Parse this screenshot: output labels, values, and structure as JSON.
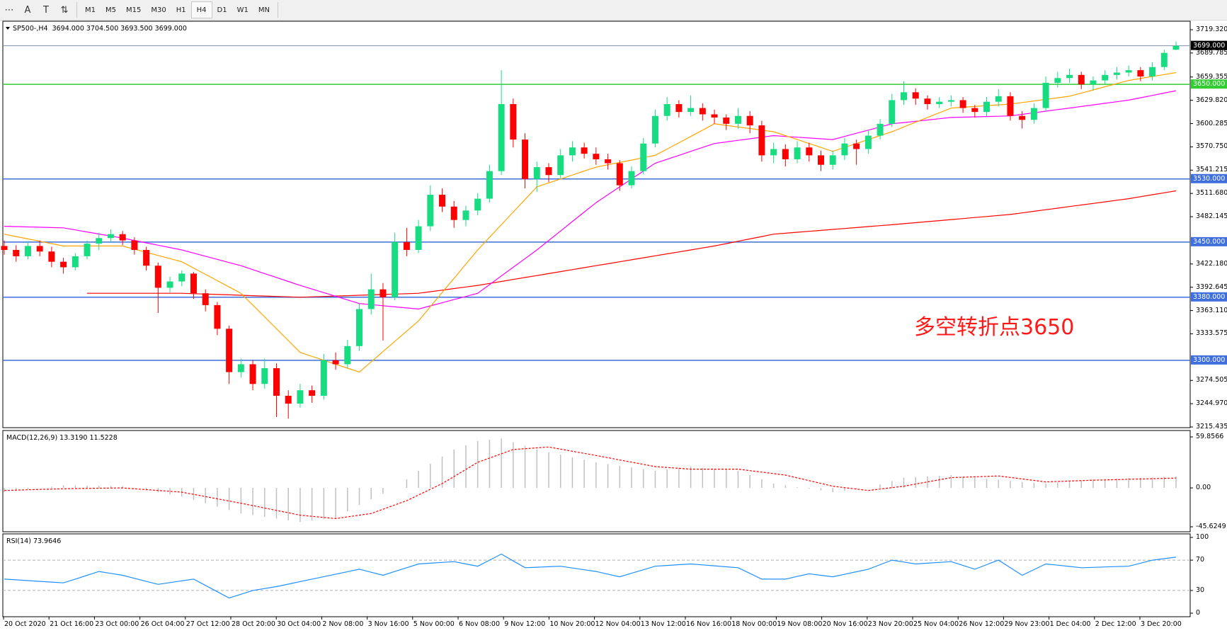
{
  "toolbar": {
    "tools": [
      {
        "name": "period-separators",
        "glyph": "⋯"
      },
      {
        "name": "text",
        "glyph": "A"
      },
      {
        "name": "text-label",
        "glyph": "T"
      },
      {
        "name": "arrows",
        "glyph": "⇅"
      }
    ],
    "timeframes": [
      "M1",
      "M5",
      "M15",
      "M30",
      "H1",
      "H4",
      "D1",
      "W1",
      "MN"
    ],
    "active_timeframe": "H4"
  },
  "chart": {
    "header": "SP500-,H4  3694.000 3704.500 3693.500 3699.000",
    "annotation": "多空转折点3650",
    "colors": {
      "bull": "#18dc82",
      "bear": "#ff0000",
      "ma_fast": "#ffa500",
      "ma_mid": "#ff00ff",
      "ma_slow": "#ff0000",
      "level": "#3f6fdc",
      "pivot": "#33cc33",
      "current": "#7f8fa8"
    },
    "price_ticks": [
      "3719.320",
      "3689.785",
      "3659.355",
      "3629.820",
      "3600.285",
      "3570.750",
      "3541.215",
      "3511.680",
      "3482.145",
      "3422.180",
      "3392.645",
      "3363.110",
      "3333.575",
      "3274.505",
      "3244.970",
      "3215.435"
    ],
    "price_range": [
      3215.435,
      3719.32
    ],
    "current_price": {
      "value": 3699.0,
      "label": "3699.000"
    },
    "levels": [
      {
        "value": 3650,
        "label": "3650.000",
        "kind": "pivot"
      },
      {
        "value": 3530,
        "label": "3530.000",
        "kind": "level"
      },
      {
        "value": 3450,
        "label": "3450.000",
        "kind": "level"
      },
      {
        "value": 3380,
        "label": "3380.000",
        "kind": "level"
      },
      {
        "value": 3300,
        "label": "3300.000",
        "kind": "level"
      }
    ],
    "time_labels": [
      "20 Oct 2020",
      "21 Oct 16:00",
      "23 Oct 00:00",
      "26 Oct 04:00",
      "27 Oct 12:00",
      "28 Oct 20:00",
      "30 Oct 04:00",
      "2 Nov 08:00",
      "3 Nov 16:00",
      "5 Nov 00:00",
      "6 Nov 08:00",
      "9 Nov 12:00",
      "10 Nov 20:00",
      "12 Nov 04:00",
      "13 Nov 12:00",
      "16 Nov 16:00",
      "18 Nov 00:00",
      "19 Nov 08:00",
      "20 Nov 16:00",
      "23 Nov 20:00",
      "25 Nov 04:00",
      "26 Nov 12:00",
      "29 Nov 23:00",
      "1 Dec 04:00",
      "2 Dec 12:00",
      "3 Dec 20:00"
    ]
  },
  "chart_data": {
    "type": "candlestick",
    "symbol": "SP500-",
    "timeframe": "H4",
    "ohlc": [
      [
        3445,
        3452,
        3434,
        3440
      ],
      [
        3440,
        3446,
        3425,
        3432
      ],
      [
        3432,
        3450,
        3428,
        3445
      ],
      [
        3445,
        3452,
        3432,
        3438
      ],
      [
        3438,
        3444,
        3418,
        3425
      ],
      [
        3425,
        3430,
        3410,
        3418
      ],
      [
        3418,
        3436,
        3414,
        3432
      ],
      [
        3432,
        3452,
        3428,
        3448
      ],
      [
        3448,
        3462,
        3440,
        3455
      ],
      [
        3455,
        3466,
        3450,
        3460
      ],
      [
        3460,
        3464,
        3446,
        3452
      ],
      [
        3452,
        3456,
        3434,
        3440
      ],
      [
        3440,
        3444,
        3414,
        3420
      ],
      [
        3420,
        3424,
        3360,
        3392
      ],
      [
        3392,
        3406,
        3386,
        3400
      ],
      [
        3400,
        3414,
        3394,
        3410
      ],
      [
        3410,
        3412,
        3378,
        3385
      ],
      [
        3385,
        3390,
        3362,
        3370
      ],
      [
        3370,
        3374,
        3332,
        3340
      ],
      [
        3340,
        3344,
        3270,
        3285
      ],
      [
        3285,
        3302,
        3278,
        3295
      ],
      [
        3295,
        3300,
        3262,
        3270
      ],
      [
        3270,
        3302,
        3264,
        3290
      ],
      [
        3290,
        3296,
        3228,
        3255
      ],
      [
        3255,
        3262,
        3226,
        3245
      ],
      [
        3245,
        3270,
        3240,
        3262
      ],
      [
        3262,
        3268,
        3246,
        3255
      ],
      [
        3255,
        3308,
        3250,
        3300
      ],
      [
        3300,
        3310,
        3288,
        3295
      ],
      [
        3295,
        3326,
        3290,
        3318
      ],
      [
        3318,
        3372,
        3312,
        3365
      ],
      [
        3365,
        3410,
        3358,
        3390
      ],
      [
        3390,
        3398,
        3325,
        3380
      ],
      [
        3380,
        3462,
        3376,
        3450
      ],
      [
        3450,
        3468,
        3432,
        3440
      ],
      [
        3440,
        3478,
        3436,
        3470
      ],
      [
        3470,
        3522,
        3464,
        3510
      ],
      [
        3510,
        3518,
        3488,
        3495
      ],
      [
        3495,
        3502,
        3468,
        3478
      ],
      [
        3478,
        3496,
        3470,
        3490
      ],
      [
        3490,
        3512,
        3484,
        3505
      ],
      [
        3505,
        3548,
        3500,
        3540
      ],
      [
        3540,
        3668,
        3535,
        3625
      ],
      [
        3625,
        3632,
        3570,
        3580
      ],
      [
        3580,
        3588,
        3518,
        3530
      ],
      [
        3530,
        3552,
        3514,
        3545
      ],
      [
        3545,
        3550,
        3526,
        3535
      ],
      [
        3535,
        3568,
        3530,
        3560
      ],
      [
        3560,
        3578,
        3552,
        3570
      ],
      [
        3570,
        3576,
        3556,
        3562
      ],
      [
        3562,
        3570,
        3548,
        3555
      ],
      [
        3555,
        3562,
        3542,
        3550
      ],
      [
        3550,
        3554,
        3515,
        3522
      ],
      [
        3522,
        3546,
        3518,
        3540
      ],
      [
        3540,
        3582,
        3536,
        3575
      ],
      [
        3575,
        3618,
        3570,
        3610
      ],
      [
        3610,
        3634,
        3604,
        3625
      ],
      [
        3625,
        3630,
        3608,
        3615
      ],
      [
        3615,
        3636,
        3610,
        3620
      ],
      [
        3620,
        3626,
        3604,
        3612
      ],
      [
        3612,
        3618,
        3600,
        3608
      ],
      [
        3608,
        3612,
        3592,
        3600
      ],
      [
        3600,
        3620,
        3594,
        3610
      ],
      [
        3610,
        3616,
        3588,
        3598
      ],
      [
        3598,
        3604,
        3552,
        3560
      ],
      [
        3560,
        3576,
        3550,
        3568
      ],
      [
        3568,
        3574,
        3546,
        3555
      ],
      [
        3555,
        3578,
        3550,
        3570
      ],
      [
        3570,
        3576,
        3552,
        3560
      ],
      [
        3560,
        3566,
        3540,
        3548
      ],
      [
        3548,
        3566,
        3542,
        3560
      ],
      [
        3560,
        3582,
        3554,
        3575
      ],
      [
        3575,
        3580,
        3548,
        3568
      ],
      [
        3568,
        3592,
        3562,
        3585
      ],
      [
        3585,
        3606,
        3580,
        3600
      ],
      [
        3600,
        3638,
        3596,
        3630
      ],
      [
        3630,
        3654,
        3624,
        3640
      ],
      [
        3640,
        3645,
        3624,
        3632
      ],
      [
        3632,
        3636,
        3618,
        3625
      ],
      [
        3625,
        3634,
        3620,
        3628
      ],
      [
        3628,
        3636,
        3622,
        3630
      ],
      [
        3630,
        3634,
        3614,
        3620
      ],
      [
        3620,
        3624,
        3608,
        3615
      ],
      [
        3615,
        3634,
        3610,
        3628
      ],
      [
        3628,
        3644,
        3622,
        3635
      ],
      [
        3635,
        3640,
        3604,
        3610
      ],
      [
        3610,
        3616,
        3594,
        3605
      ],
      [
        3605,
        3626,
        3600,
        3620
      ],
      [
        3620,
        3660,
        3616,
        3652
      ],
      [
        3652,
        3666,
        3646,
        3658
      ],
      [
        3658,
        3670,
        3652,
        3662
      ],
      [
        3662,
        3666,
        3644,
        3650
      ],
      [
        3650,
        3660,
        3642,
        3655
      ],
      [
        3655,
        3668,
        3650,
        3662
      ],
      [
        3662,
        3672,
        3656,
        3665
      ],
      [
        3665,
        3674,
        3660,
        3668
      ],
      [
        3668,
        3672,
        3654,
        3660
      ],
      [
        3660,
        3678,
        3655,
        3672
      ],
      [
        3672,
        3694,
        3668,
        3690
      ],
      [
        3694,
        3704.5,
        3693.5,
        3699
      ]
    ],
    "ma_fast": [
      [
        0,
        3460
      ],
      [
        5,
        3445
      ],
      [
        10,
        3445
      ],
      [
        15,
        3425
      ],
      [
        20,
        3385
      ],
      [
        25,
        3310
      ],
      [
        30,
        3285
      ],
      [
        35,
        3350
      ],
      [
        40,
        3440
      ],
      [
        45,
        3520
      ],
      [
        50,
        3545
      ],
      [
        55,
        3560
      ],
      [
        60,
        3600
      ],
      [
        65,
        3590
      ],
      [
        70,
        3565
      ],
      [
        75,
        3590
      ],
      [
        80,
        3620
      ],
      [
        85,
        3625
      ],
      [
        90,
        3635
      ],
      [
        95,
        3655
      ],
      [
        99,
        3665
      ]
    ],
    "ma_mid": [
      [
        0,
        3470
      ],
      [
        5,
        3468
      ],
      [
        10,
        3455
      ],
      [
        15,
        3440
      ],
      [
        20,
        3420
      ],
      [
        25,
        3395
      ],
      [
        30,
        3372
      ],
      [
        35,
        3365
      ],
      [
        40,
        3385
      ],
      [
        45,
        3440
      ],
      [
        50,
        3500
      ],
      [
        55,
        3550
      ],
      [
        60,
        3575
      ],
      [
        65,
        3585
      ],
      [
        70,
        3580
      ],
      [
        75,
        3600
      ],
      [
        80,
        3608
      ],
      [
        85,
        3610
      ],
      [
        90,
        3620
      ],
      [
        95,
        3630
      ],
      [
        99,
        3642
      ]
    ],
    "ma_slow": [
      [
        7,
        3385
      ],
      [
        15,
        3385
      ],
      [
        25,
        3380
      ],
      [
        35,
        3385
      ],
      [
        40,
        3395
      ],
      [
        50,
        3420
      ],
      [
        60,
        3445
      ],
      [
        65,
        3460
      ],
      [
        75,
        3472
      ],
      [
        85,
        3485
      ],
      [
        95,
        3505
      ],
      [
        99,
        3515
      ]
    ],
    "macd": {
      "label": "MACD(12,26,9) 13.3190 11.5228",
      "range": [
        -45.6249,
        59.8566
      ],
      "ticks": [
        "59.8566",
        "0.00",
        "-45.6249"
      ],
      "histogram": [
        [
          0,
          -5
        ],
        [
          5,
          3
        ],
        [
          10,
          2
        ],
        [
          15,
          -10
        ],
        [
          20,
          -30
        ],
        [
          25,
          -40
        ],
        [
          28,
          -35
        ],
        [
          30,
          -20
        ],
        [
          33,
          0
        ],
        [
          35,
          20
        ],
        [
          38,
          45
        ],
        [
          40,
          55
        ],
        [
          42,
          58
        ],
        [
          45,
          45
        ],
        [
          50,
          30
        ],
        [
          55,
          20
        ],
        [
          58,
          25
        ],
        [
          62,
          20
        ],
        [
          65,
          5
        ],
        [
          70,
          -5
        ],
        [
          73,
          0
        ],
        [
          76,
          12
        ],
        [
          80,
          15
        ],
        [
          85,
          8
        ],
        [
          88,
          5
        ],
        [
          92,
          10
        ],
        [
          99,
          13.319
        ]
      ],
      "signal": [
        [
          0,
          -3
        ],
        [
          5,
          -1
        ],
        [
          10,
          0
        ],
        [
          15,
          -5
        ],
        [
          20,
          -18
        ],
        [
          25,
          -32
        ],
        [
          28,
          -36
        ],
        [
          31,
          -30
        ],
        [
          34,
          -15
        ],
        [
          37,
          5
        ],
        [
          40,
          30
        ],
        [
          43,
          45
        ],
        [
          46,
          48
        ],
        [
          50,
          38
        ],
        [
          55,
          25
        ],
        [
          58,
          22
        ],
        [
          62,
          22
        ],
        [
          66,
          15
        ],
        [
          70,
          2
        ],
        [
          73,
          -3
        ],
        [
          76,
          2
        ],
        [
          80,
          12
        ],
        [
          84,
          14
        ],
        [
          88,
          7
        ],
        [
          92,
          9
        ],
        [
          99,
          11.5228
        ]
      ]
    },
    "rsi": {
      "label": "RSI(14) 73.9646",
      "range": [
        0,
        100
      ],
      "ticks": [
        "100",
        "70",
        "30",
        "0"
      ],
      "levels": [
        70,
        30
      ],
      "values": [
        [
          0,
          45
        ],
        [
          5,
          40
        ],
        [
          8,
          55
        ],
        [
          10,
          50
        ],
        [
          13,
          38
        ],
        [
          16,
          45
        ],
        [
          19,
          20
        ],
        [
          21,
          30
        ],
        [
          23,
          35
        ],
        [
          26,
          45
        ],
        [
          30,
          58
        ],
        [
          32,
          50
        ],
        [
          35,
          65
        ],
        [
          38,
          68
        ],
        [
          40,
          62
        ],
        [
          42,
          78
        ],
        [
          44,
          60
        ],
        [
          47,
          62
        ],
        [
          50,
          55
        ],
        [
          52,
          48
        ],
        [
          55,
          62
        ],
        [
          58,
          65
        ],
        [
          62,
          60
        ],
        [
          64,
          45
        ],
        [
          66,
          45
        ],
        [
          68,
          52
        ],
        [
          70,
          48
        ],
        [
          73,
          58
        ],
        [
          75,
          70
        ],
        [
          77,
          65
        ],
        [
          80,
          68
        ],
        [
          82,
          58
        ],
        [
          84,
          70
        ],
        [
          86,
          50
        ],
        [
          88,
          65
        ],
        [
          91,
          60
        ],
        [
          95,
          62
        ],
        [
          97,
          70
        ],
        [
          99,
          73.9646
        ]
      ]
    }
  }
}
